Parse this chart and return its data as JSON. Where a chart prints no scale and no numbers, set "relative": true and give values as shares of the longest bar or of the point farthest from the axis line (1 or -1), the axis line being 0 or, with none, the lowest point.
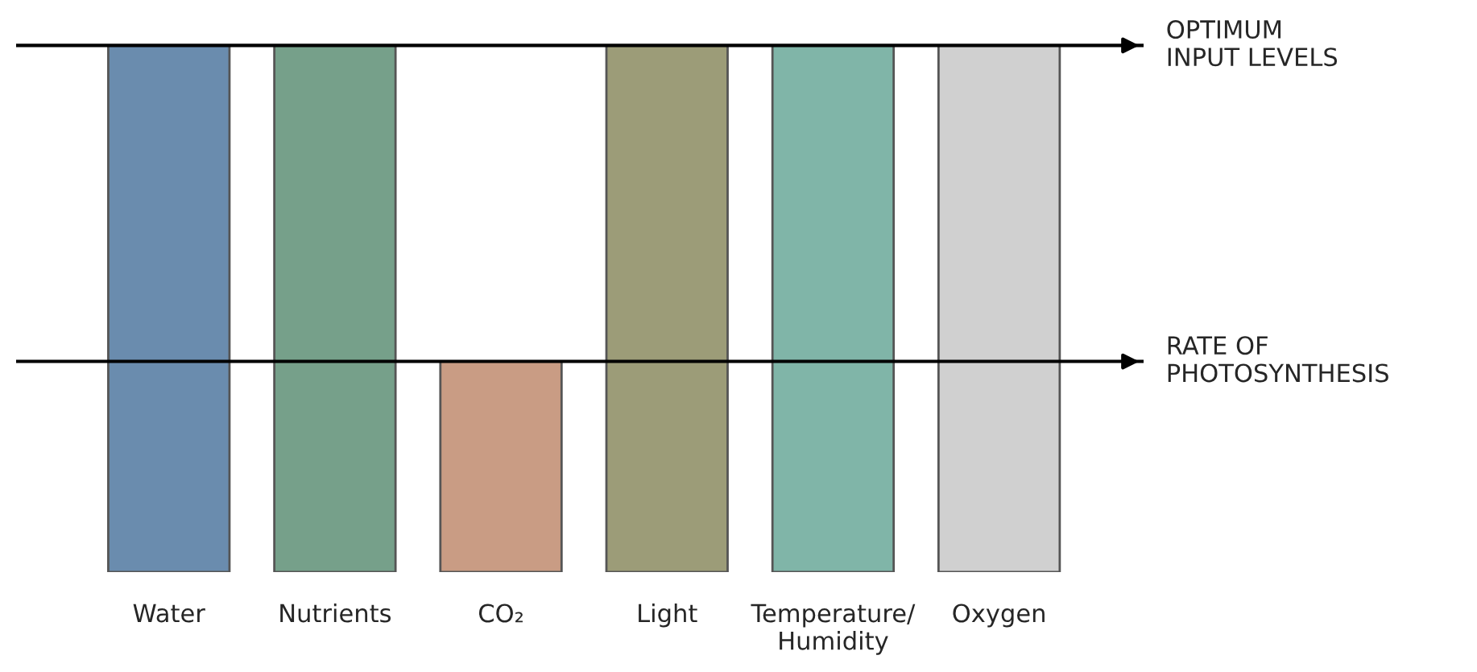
{
  "chart_data": {
    "type": "bar",
    "relative": true,
    "categories": [
      "Water",
      "Nutrients",
      "CO₂",
      "Light",
      "Temperature/\nHumidity",
      "Oxygen"
    ],
    "values": [
      1,
      1,
      0.4,
      1,
      1,
      1
    ],
    "colors": [
      "#6a8cae",
      "#76a08a",
      "#c99c84",
      "#9c9c78",
      "#80b5a8",
      "#d0d0d0"
    ],
    "ref_lines": [
      {
        "axis": "y",
        "value": 1,
        "label": "OPTIMUM\nINPUT LEVELS"
      },
      {
        "axis": "y",
        "value": 0.4,
        "label": "RATE OF\nPHOTOSYNTHESIS"
      }
    ],
    "grid": false,
    "legend": false
  }
}
